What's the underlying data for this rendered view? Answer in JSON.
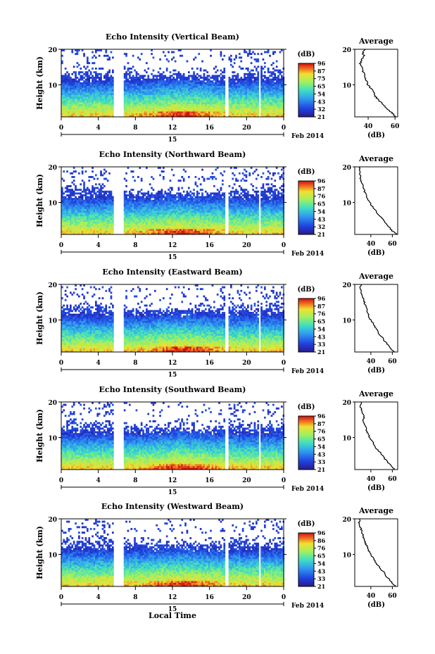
{
  "figure": {
    "x_axis_title": "Local Time",
    "date_center_label": "15",
    "date_right_label": "Feb 2014"
  },
  "chart_data": [
    {
      "type": "heatmap",
      "title": "Echo Intensity (Vertical Beam)",
      "ylabel": "Height (km)",
      "xlim": [
        0,
        24
      ],
      "ylim": [
        1,
        20
      ],
      "x_ticks": [
        "0",
        "4",
        "8",
        "12",
        "16",
        "20",
        "0"
      ],
      "y_ticks": [
        "10",
        "20"
      ],
      "colorbar": {
        "unit": "(dB)",
        "ticks": [
          "96",
          "87",
          "75",
          "65",
          "54",
          "43",
          "32",
          "21"
        ]
      },
      "gaps_hours": [
        [
          5.6,
          6.6
        ],
        [
          17.6,
          17.9
        ],
        [
          21.2,
          21.5
        ]
      ],
      "average_profile": {
        "title": "Average",
        "xlabel": "(dB)",
        "x_ticks": [
          "40",
          "60"
        ],
        "xlim": [
          30,
          62
        ],
        "height_km": [
          1,
          2,
          3,
          4,
          5,
          6,
          7,
          8,
          9,
          10,
          11,
          12,
          13,
          14,
          15,
          16,
          17,
          18,
          19,
          20
        ],
        "intensity_db": [
          61,
          58,
          55,
          52,
          50,
          47,
          45,
          44,
          42,
          40,
          39,
          38,
          37,
          36,
          35,
          34,
          35,
          37,
          36,
          38
        ]
      }
    },
    {
      "type": "heatmap",
      "title": "Echo Intensity (Northward Beam)",
      "ylabel": "Height (km)",
      "xlim": [
        0,
        24
      ],
      "ylim": [
        1,
        20
      ],
      "x_ticks": [
        "0",
        "4",
        "8",
        "12",
        "16",
        "20",
        "0"
      ],
      "y_ticks": [
        "10",
        "20"
      ],
      "colorbar": {
        "unit": "(dB)",
        "ticks": [
          "96",
          "87",
          "76",
          "65",
          "54",
          "43",
          "32",
          "21"
        ]
      },
      "gaps_hours": [
        [
          5.6,
          6.6
        ],
        [
          17.6,
          17.9
        ],
        [
          21.2,
          21.5
        ]
      ],
      "average_profile": {
        "title": "Average",
        "xlabel": "(dB)",
        "x_ticks": [
          "40",
          "60"
        ],
        "xlim": [
          25,
          65
        ],
        "height_km": [
          1,
          2,
          3,
          4,
          5,
          6,
          7,
          8,
          9,
          10,
          11,
          12,
          13,
          14,
          15,
          16,
          17,
          18,
          19,
          20
        ],
        "intensity_db": [
          64,
          60,
          57,
          54,
          52,
          49,
          46,
          44,
          41,
          39,
          37,
          36,
          34,
          33,
          32,
          31,
          30,
          30,
          29,
          30
        ]
      }
    },
    {
      "type": "heatmap",
      "title": "Echo Intensity (Eastward Beam)",
      "ylabel": "Height (km)",
      "xlim": [
        0,
        24
      ],
      "ylim": [
        1,
        20
      ],
      "x_ticks": [
        "0",
        "4",
        "8",
        "12",
        "16",
        "20",
        "0"
      ],
      "y_ticks": [
        "10",
        "20"
      ],
      "colorbar": {
        "unit": "(dB)",
        "ticks": [
          "96",
          "87",
          "76",
          "65",
          "54",
          "43",
          "33",
          "21"
        ]
      },
      "gaps_hours": [
        [
          5.6,
          6.6
        ],
        [
          17.6,
          17.9
        ],
        [
          21.2,
          21.5
        ]
      ],
      "average_profile": {
        "title": "Average",
        "xlabel": "(dB)",
        "x_ticks": [
          "40",
          "60"
        ],
        "xlim": [
          25,
          65
        ],
        "height_km": [
          1,
          2,
          3,
          4,
          5,
          6,
          7,
          8,
          9,
          10,
          11,
          12,
          13,
          14,
          15,
          16,
          17,
          18,
          19,
          20
        ],
        "intensity_db": [
          62,
          58,
          56,
          53,
          51,
          48,
          46,
          44,
          42,
          40,
          38,
          37,
          36,
          35,
          34,
          33,
          32,
          31,
          30,
          31
        ]
      }
    },
    {
      "type": "heatmap",
      "title": "Echo Intensity (Southward Beam)",
      "ylabel": "Height (km)",
      "xlim": [
        0,
        24
      ],
      "ylim": [
        1,
        20
      ],
      "x_ticks": [
        "0",
        "4",
        "8",
        "12",
        "16",
        "20",
        "0"
      ],
      "y_ticks": [
        "10",
        "20"
      ],
      "colorbar": {
        "unit": "(dB)",
        "ticks": [
          "96",
          "87",
          "76",
          "65",
          "54",
          "43",
          "33",
          "21"
        ]
      },
      "gaps_hours": [
        [
          5.6,
          6.6
        ],
        [
          17.6,
          17.9
        ],
        [
          21.2,
          21.5
        ]
      ],
      "average_profile": {
        "title": "Average",
        "xlabel": "(dB)",
        "x_ticks": [
          "40",
          "60"
        ],
        "xlim": [
          25,
          65
        ],
        "height_km": [
          1,
          2,
          3,
          4,
          5,
          6,
          7,
          8,
          9,
          10,
          11,
          12,
          13,
          14,
          15,
          16,
          17,
          18,
          19,
          20
        ],
        "intensity_db": [
          62,
          59,
          56,
          53,
          51,
          48,
          45,
          43,
          41,
          39,
          37,
          36,
          35,
          34,
          33,
          34,
          32,
          31,
          30,
          31
        ]
      }
    },
    {
      "type": "heatmap",
      "title": "Echo Intensity (Westward Beam)",
      "ylabel": "Height (km)",
      "xlim": [
        0,
        24
      ],
      "ylim": [
        1,
        20
      ],
      "x_ticks": [
        "0",
        "4",
        "8",
        "12",
        "16",
        "20",
        "0"
      ],
      "y_ticks": [
        "10",
        "20"
      ],
      "colorbar": {
        "unit": "(dB)",
        "ticks": [
          "96",
          "86",
          "76",
          "65",
          "54",
          "43",
          "33",
          "21"
        ]
      },
      "gaps_hours": [
        [
          5.6,
          6.6
        ],
        [
          17.6,
          17.9
        ],
        [
          21.2,
          21.5
        ]
      ],
      "average_profile": {
        "title": "Average",
        "xlabel": "(dB)",
        "x_ticks": [
          "40",
          "60"
        ],
        "xlim": [
          25,
          65
        ],
        "height_km": [
          1,
          2,
          3,
          4,
          5,
          6,
          7,
          8,
          9,
          10,
          11,
          12,
          13,
          14,
          15,
          16,
          17,
          18,
          19,
          20
        ],
        "intensity_db": [
          63,
          60,
          57,
          54,
          52,
          49,
          46,
          44,
          42,
          40,
          38,
          37,
          35,
          34,
          33,
          32,
          31,
          30,
          29,
          30
        ]
      }
    }
  ]
}
